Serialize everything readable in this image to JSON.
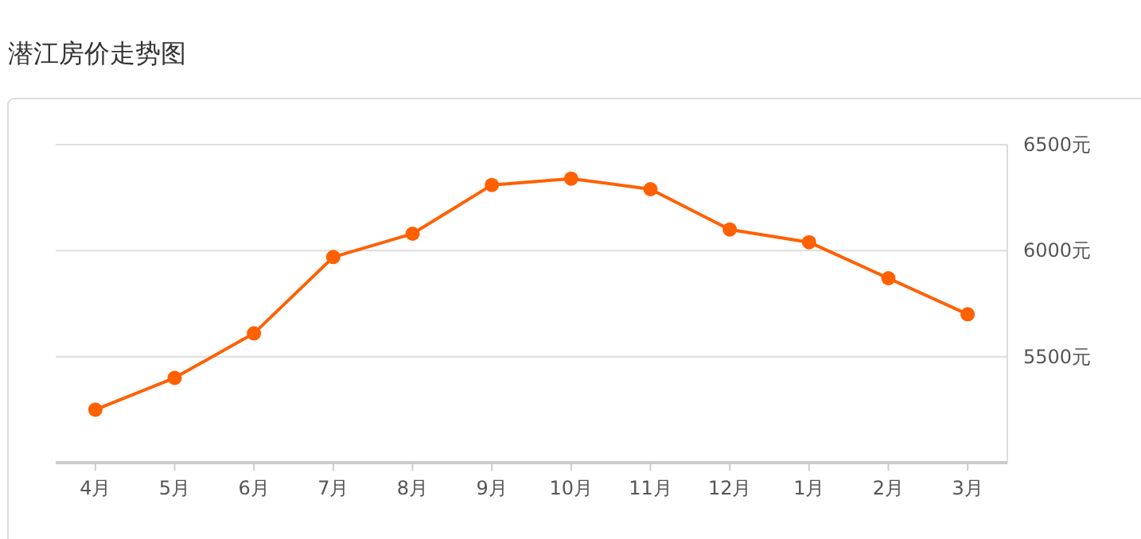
{
  "chart_data": {
    "type": "line",
    "title": "潜江房价走势图",
    "categories": [
      "4月",
      "5月",
      "6月",
      "7月",
      "8月",
      "9月",
      "10月",
      "11月",
      "12月",
      "1月",
      "2月",
      "3月"
    ],
    "series": [
      {
        "color": "#ff6000",
        "values": [
          5250,
          5400,
          5610,
          5970,
          6080,
          6310,
          6340,
          6290,
          6100,
          6040,
          5870,
          5700
        ]
      }
    ],
    "ylim": [
      5000,
      6500
    ],
    "yticks": [
      {
        "value": 5500,
        "label": "5500元"
      },
      {
        "value": 6000,
        "label": "6000元"
      },
      {
        "value": 6500,
        "label": "6500元"
      }
    ],
    "grid": "y",
    "marker": "circle",
    "line_style": "solid"
  }
}
